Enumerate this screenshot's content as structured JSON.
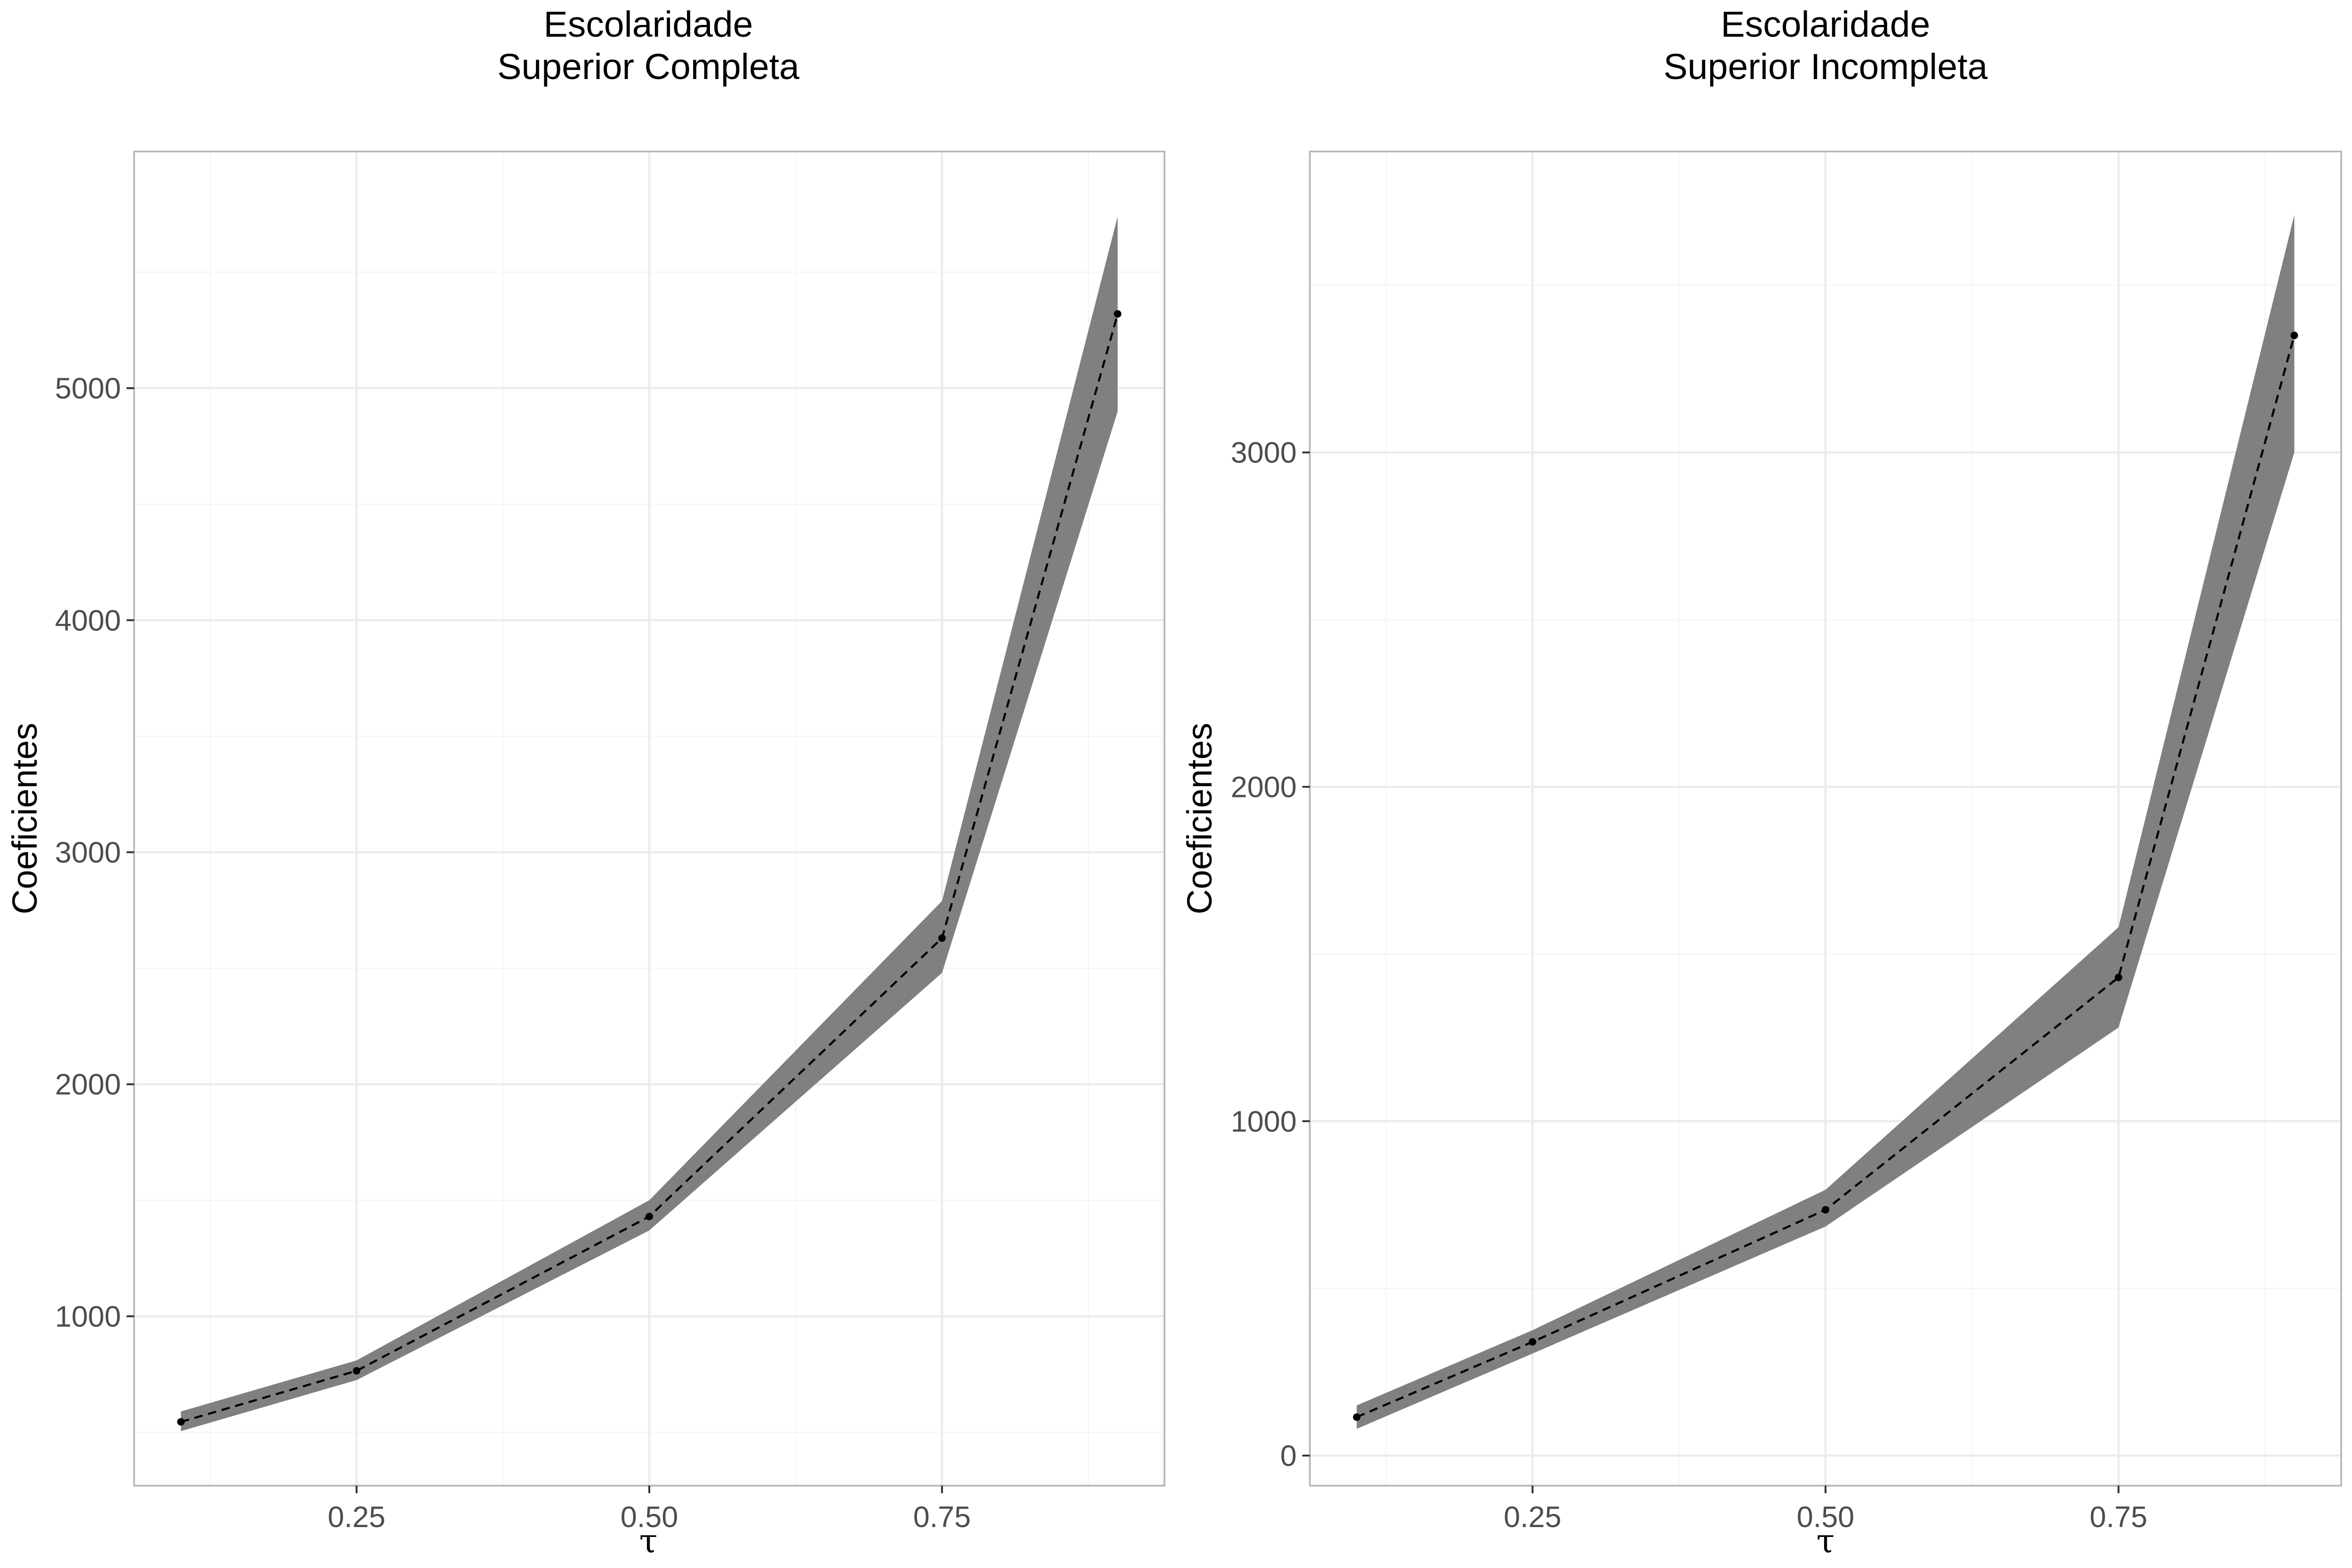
{
  "chart_data": [
    {
      "type": "line",
      "title_line1": "Escolaridade",
      "title_line2": "Superior Completa",
      "xlabel": "τ",
      "ylabel": "Coeficientes",
      "x": [
        0.1,
        0.25,
        0.5,
        0.75,
        0.9
      ],
      "series": [
        {
          "values": [
            545,
            765,
            1430,
            2630,
            5320
          ],
          "lower": [
            505,
            725,
            1370,
            2480,
            4900
          ],
          "upper": [
            590,
            810,
            1500,
            2790,
            5740
          ]
        }
      ],
      "xlim": [
        0.06,
        0.94
      ],
      "ylim": [
        270,
        6020
      ],
      "xticks": [
        0.25,
        0.5,
        0.75
      ],
      "xtick_labels": [
        "0.25",
        "0.50",
        "0.75"
      ],
      "yticks": [
        1000,
        2000,
        3000,
        4000,
        5000
      ],
      "ytick_labels": [
        "1000",
        "2000",
        "3000",
        "4000",
        "5000"
      ],
      "grid": true
    },
    {
      "type": "line",
      "title_line1": "Escolaridade",
      "title_line2": "Superior Incompleta",
      "xlabel": "τ",
      "ylabel": "Coeficientes",
      "x": [
        0.1,
        0.25,
        0.5,
        0.75,
        0.9
      ],
      "series": [
        {
          "values": [
            115,
            340,
            735,
            1430,
            3350
          ],
          "lower": [
            80,
            305,
            685,
            1280,
            3000
          ],
          "upper": [
            150,
            375,
            795,
            1580,
            3710
          ]
        }
      ],
      "xlim": [
        0.06,
        0.94
      ],
      "ylim": [
        -90,
        3900
      ],
      "xticks": [
        0.25,
        0.5,
        0.75
      ],
      "xtick_labels": [
        "0.25",
        "0.50",
        "0.75"
      ],
      "yticks": [
        0,
        1000,
        2000,
        3000
      ],
      "ytick_labels": [
        "0",
        "1000",
        "2000",
        "3000"
      ],
      "grid": true
    }
  ]
}
